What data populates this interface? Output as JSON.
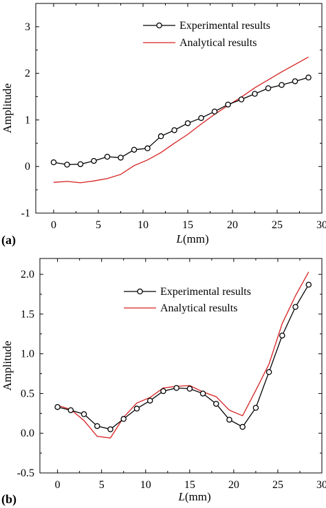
{
  "chart_data": [
    {
      "type": "line",
      "panel_label": "(a)",
      "xlabel_italic": "L",
      "xlabel_rest": "(mm)",
      "ylabel": "Amplitude",
      "xlim": [
        -2,
        30
      ],
      "ylim": [
        -1,
        3.5
      ],
      "xticks": [
        "0",
        "5",
        "10",
        "15",
        "20",
        "25",
        "30"
      ],
      "yticks": [
        "-1",
        "0",
        "1",
        "2",
        "3"
      ],
      "legend_position": "top-right",
      "series": [
        {
          "name": "Experimental results",
          "color": "#000000",
          "marker": "circle",
          "x": [
            0,
            1.5,
            3,
            4.5,
            6,
            7.5,
            9,
            10.5,
            12,
            13.5,
            15,
            16.5,
            18,
            19.5,
            21,
            22.5,
            24,
            25.5,
            27,
            28.5
          ],
          "y": [
            0.09,
            0.04,
            0.05,
            0.12,
            0.21,
            0.19,
            0.36,
            0.39,
            0.65,
            0.78,
            0.93,
            1.04,
            1.18,
            1.33,
            1.44,
            1.56,
            1.68,
            1.75,
            1.83,
            1.91
          ]
        },
        {
          "name": "Analytical results",
          "color": "#d61f1f",
          "marker": "none",
          "x": [
            0,
            1.5,
            3,
            4.5,
            6,
            7.5,
            9,
            10.5,
            12,
            13.5,
            15,
            16.5,
            18,
            19.5,
            21,
            22.5,
            24,
            25.5,
            27,
            28.5
          ],
          "y": [
            -0.34,
            -0.32,
            -0.35,
            -0.31,
            -0.26,
            -0.17,
            0.02,
            0.14,
            0.3,
            0.5,
            0.69,
            0.91,
            1.12,
            1.31,
            1.49,
            1.69,
            1.86,
            2.03,
            2.19,
            2.35
          ]
        }
      ]
    },
    {
      "type": "line",
      "panel_label": "(b)",
      "xlabel_italic": "L",
      "xlabel_rest": "(mm)",
      "ylabel": "Amplitude",
      "xlim": [
        -2,
        30
      ],
      "ylim": [
        -0.5,
        2.2
      ],
      "xticks": [
        "0",
        "5",
        "10",
        "15",
        "20",
        "25",
        "30"
      ],
      "yticks": [
        "-0.5",
        "0.0",
        "0.5",
        "1.0",
        "1.5",
        "2.0"
      ],
      "legend_position": "top-center",
      "series": [
        {
          "name": "Experimental results",
          "color": "#000000",
          "marker": "circle",
          "x": [
            0,
            1.5,
            3,
            4.5,
            6,
            7.5,
            9,
            10.5,
            12,
            13.5,
            15,
            16.5,
            18,
            19.5,
            21,
            22.5,
            24,
            25.5,
            27,
            28.5
          ],
          "y": [
            0.33,
            0.29,
            0.24,
            0.09,
            0.05,
            0.18,
            0.31,
            0.41,
            0.53,
            0.57,
            0.56,
            0.5,
            0.37,
            0.17,
            0.08,
            0.32,
            0.77,
            1.23,
            1.59,
            1.87
          ]
        },
        {
          "name": "Analytical results",
          "color": "#d61f1f",
          "marker": "none",
          "x": [
            0,
            1.5,
            3,
            4.5,
            6,
            7.5,
            9,
            10.5,
            12,
            13.5,
            15,
            16.5,
            18,
            19.5,
            21,
            22.5,
            24,
            25.5,
            27,
            28.5
          ],
          "y": [
            0.35,
            0.3,
            0.16,
            -0.04,
            -0.06,
            0.2,
            0.38,
            0.45,
            0.57,
            0.59,
            0.6,
            0.52,
            0.46,
            0.29,
            0.22,
            0.54,
            0.87,
            1.38,
            1.73,
            2.03
          ]
        }
      ]
    }
  ]
}
